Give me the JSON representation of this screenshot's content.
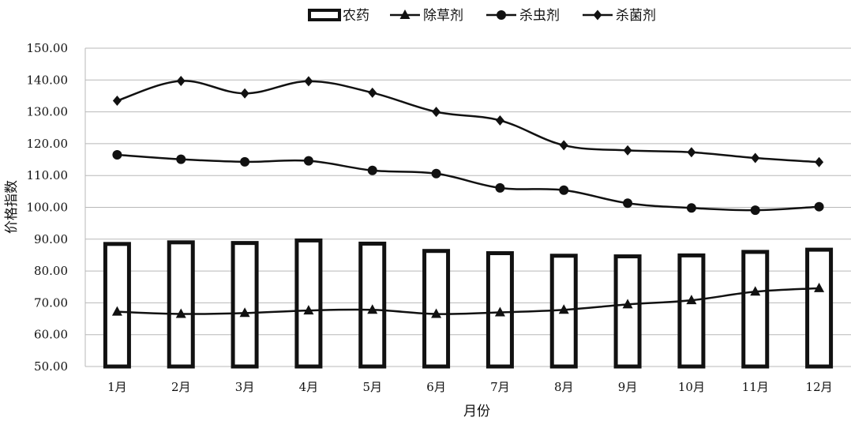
{
  "chart_data": {
    "type": "bar+line",
    "xlabel": "月份",
    "ylabel": "价格指数",
    "ylim": [
      50,
      150
    ],
    "ytick_step": 10,
    "ytick_labels": [
      "50.00",
      "60.00",
      "70.00",
      "80.00",
      "90.00",
      "100.00",
      "110.00",
      "120.00",
      "130.00",
      "140.00",
      "150.00"
    ],
    "grid": true,
    "legend_position": "top",
    "categories": [
      "1月",
      "2月",
      "3月",
      "4月",
      "5月",
      "6月",
      "7月",
      "8月",
      "9月",
      "10月",
      "11月",
      "12月"
    ],
    "series": [
      {
        "name": "农药",
        "kind": "bar",
        "marker": "none",
        "values": [
          88.5,
          89.0,
          88.8,
          89.6,
          88.6,
          86.3,
          85.6,
          84.8,
          84.6,
          84.9,
          86.0,
          86.7
        ]
      },
      {
        "name": "除草剂",
        "kind": "line",
        "marker": "triangle",
        "values": [
          67.2,
          66.5,
          66.8,
          67.6,
          67.8,
          66.5,
          67.0,
          67.8,
          69.5,
          70.8,
          73.5,
          74.6
        ]
      },
      {
        "name": "杀虫剂",
        "kind": "line",
        "marker": "circle",
        "values": [
          116.5,
          115.1,
          114.3,
          114.6,
          111.6,
          110.6,
          106.1,
          105.4,
          101.3,
          99.8,
          99.1,
          100.2
        ]
      },
      {
        "name": "杀菌剂",
        "kind": "line",
        "marker": "diamond",
        "values": [
          133.5,
          139.7,
          135.8,
          139.6,
          136.0,
          130.0,
          127.3,
          119.5,
          117.9,
          117.3,
          115.5,
          114.2
        ]
      }
    ]
  }
}
